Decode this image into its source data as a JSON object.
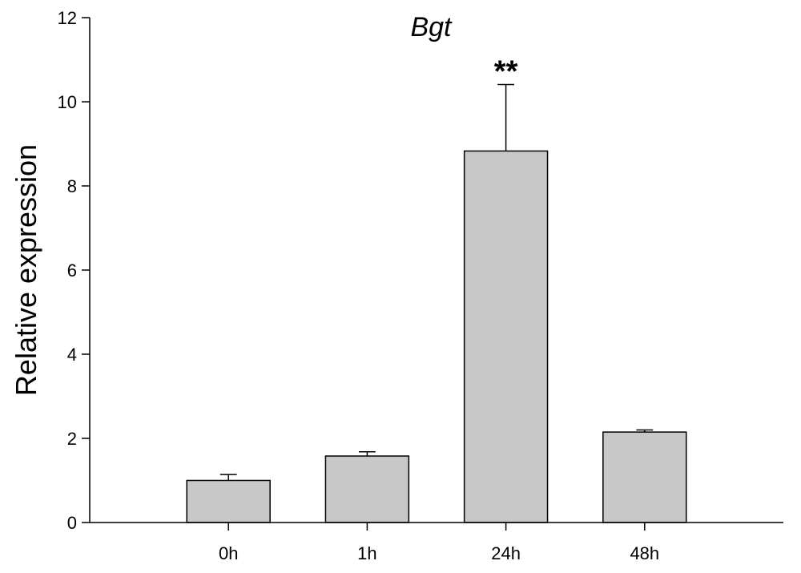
{
  "chart_data": {
    "type": "bar",
    "title": "Bgt",
    "xlabel": "",
    "ylabel": "Relative expression",
    "categories": [
      "0h",
      "1h",
      "24h",
      "48h"
    ],
    "values": [
      1.0,
      1.58,
      8.83,
      2.15
    ],
    "errors": [
      0.14,
      0.1,
      1.58,
      0.05
    ],
    "annotations": [
      {
        "category": "24h",
        "text": "**"
      }
    ],
    "ylim": [
      0,
      12
    ],
    "yticks": [
      0,
      2,
      4,
      6,
      8,
      10,
      12
    ],
    "bar_color": "#c8c8c8",
    "grid": false,
    "legend": "none"
  }
}
